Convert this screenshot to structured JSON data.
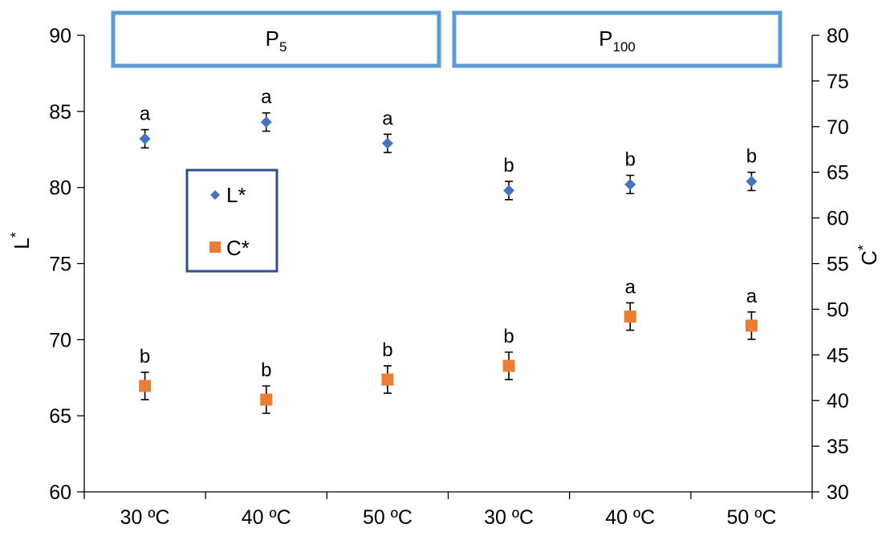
{
  "chart_data": {
    "type": "scatter",
    "categories": [
      "30 ºC",
      "40 ºC",
      "50 ºC",
      "30 ºC",
      "40 ºC",
      "50 ºC"
    ],
    "groups": [
      {
        "label_main": "P",
        "label_sub": "5"
      },
      {
        "label_main": "P",
        "label_sub": "100"
      }
    ],
    "y_left": {
      "label_main": "L",
      "label_sup": "*",
      "range": [
        60,
        90
      ],
      "ticks": [
        60,
        65,
        70,
        75,
        80,
        85,
        90
      ]
    },
    "y_right": {
      "label_main": "C",
      "label_sup": "*",
      "range": [
        30,
        80
      ],
      "ticks": [
        30,
        35,
        40,
        45,
        50,
        55,
        60,
        65,
        70,
        75,
        80
      ]
    },
    "series": [
      {
        "name": "L*",
        "axis": "left",
        "marker": "diamond",
        "color": "#4472C4",
        "values": [
          83.2,
          84.3,
          82.9,
          79.8,
          80.2,
          80.4
        ],
        "errors": [
          0.6,
          0.6,
          0.6,
          0.6,
          0.6,
          0.6
        ],
        "labels": [
          "a",
          "a",
          "a",
          "b",
          "b",
          "b"
        ]
      },
      {
        "name": "C*",
        "axis": "right",
        "marker": "square",
        "color": "#ED7D31",
        "values": [
          41.6,
          40.1,
          42.3,
          43.8,
          49.2,
          48.2
        ],
        "errors": [
          1.5,
          1.5,
          1.5,
          1.5,
          1.5,
          1.5
        ],
        "labels": [
          "b",
          "b",
          "b",
          "b",
          "a",
          "a"
        ]
      }
    ],
    "legend": {
      "position": "left",
      "border_color": "#2F4F8F"
    },
    "group_box_color": "#5B9BD5",
    "grid": false
  }
}
